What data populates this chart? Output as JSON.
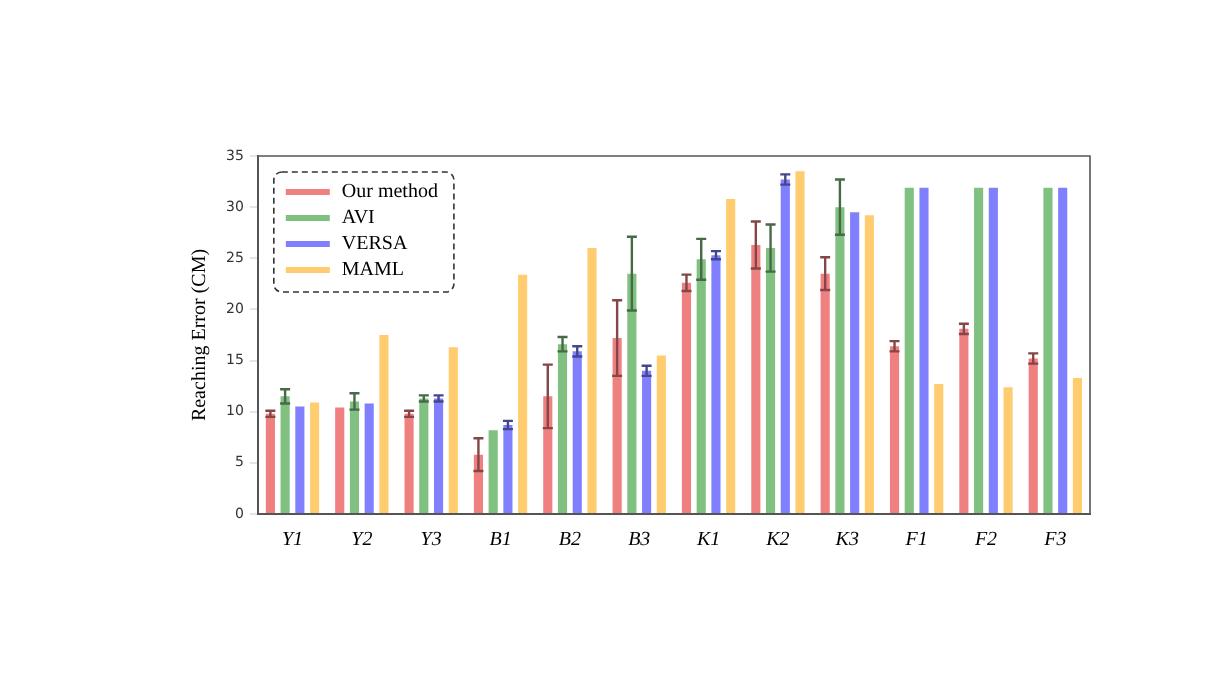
{
  "chart_data": {
    "type": "bar",
    "ylabel": "Reaching Error (CM)",
    "categories": [
      "Y1",
      "Y2",
      "Y3",
      "B1",
      "B2",
      "B3",
      "K1",
      "K2",
      "K3",
      "F1",
      "F2",
      "F3"
    ],
    "series": [
      {
        "name": "Our method",
        "color": "#f08080",
        "values": [
          9.8,
          10.4,
          9.8,
          5.8,
          11.5,
          17.2,
          22.6,
          26.3,
          23.5,
          16.4,
          18.1,
          15.2
        ],
        "errors": [
          0.3,
          null,
          0.3,
          1.6,
          3.1,
          3.7,
          0.8,
          2.3,
          1.6,
          0.5,
          0.5,
          0.5
        ]
      },
      {
        "name": "AVI",
        "color": "#80c080",
        "values": [
          11.5,
          11.0,
          11.3,
          8.2,
          16.6,
          23.5,
          24.9,
          26.0,
          30.0,
          31.9,
          31.9,
          31.9
        ],
        "errors": [
          0.7,
          0.8,
          0.3,
          null,
          0.7,
          3.6,
          2.0,
          2.3,
          2.7,
          null,
          null,
          null
        ]
      },
      {
        "name": "VERSA",
        "color": "#8080ff",
        "values": [
          10.5,
          10.8,
          11.3,
          8.7,
          15.9,
          14.0,
          25.3,
          32.7,
          29.5,
          31.9,
          31.9,
          31.9
        ],
        "errors": [
          null,
          null,
          0.3,
          0.4,
          0.5,
          0.5,
          0.4,
          0.5,
          null,
          null,
          null,
          null
        ]
      },
      {
        "name": "MAML",
        "color": "#ffcc70",
        "values": [
          10.9,
          17.5,
          16.3,
          23.4,
          26.0,
          15.5,
          30.8,
          33.5,
          29.2,
          12.7,
          12.4,
          13.3
        ]
      }
    ],
    "ylim": [
      0,
      35
    ],
    "yticks": [
      0,
      5,
      10,
      15,
      20,
      25,
      30,
      35
    ],
    "grid": false,
    "legend": "top left"
  }
}
